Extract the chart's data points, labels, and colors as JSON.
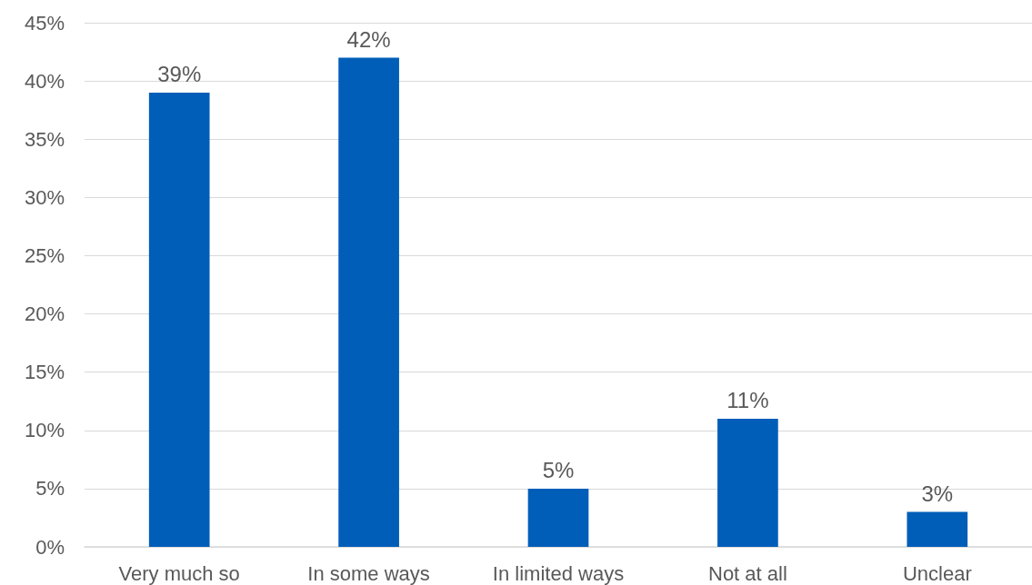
{
  "chart_data": {
    "type": "bar",
    "categories": [
      "Very much so",
      "In some ways",
      "In limited ways",
      "Not at all",
      "Unclear"
    ],
    "values": [
      39,
      42,
      5,
      11,
      3
    ],
    "value_labels": [
      "39%",
      "42%",
      "5%",
      "11%",
      "3%"
    ],
    "color": "#005eb8",
    "ylim": [
      0,
      45
    ],
    "yticks": [
      {
        "value": 0,
        "label": "0%"
      },
      {
        "value": 5,
        "label": "5%"
      },
      {
        "value": 10,
        "label": "10%"
      },
      {
        "value": 15,
        "label": "15%"
      },
      {
        "value": 20,
        "label": "20%"
      },
      {
        "value": 25,
        "label": "25%"
      },
      {
        "value": 30,
        "label": "30%"
      },
      {
        "value": 35,
        "label": "35%"
      },
      {
        "value": 40,
        "label": "40%"
      },
      {
        "value": 45,
        "label": "45%"
      }
    ],
    "grid": "y"
  }
}
